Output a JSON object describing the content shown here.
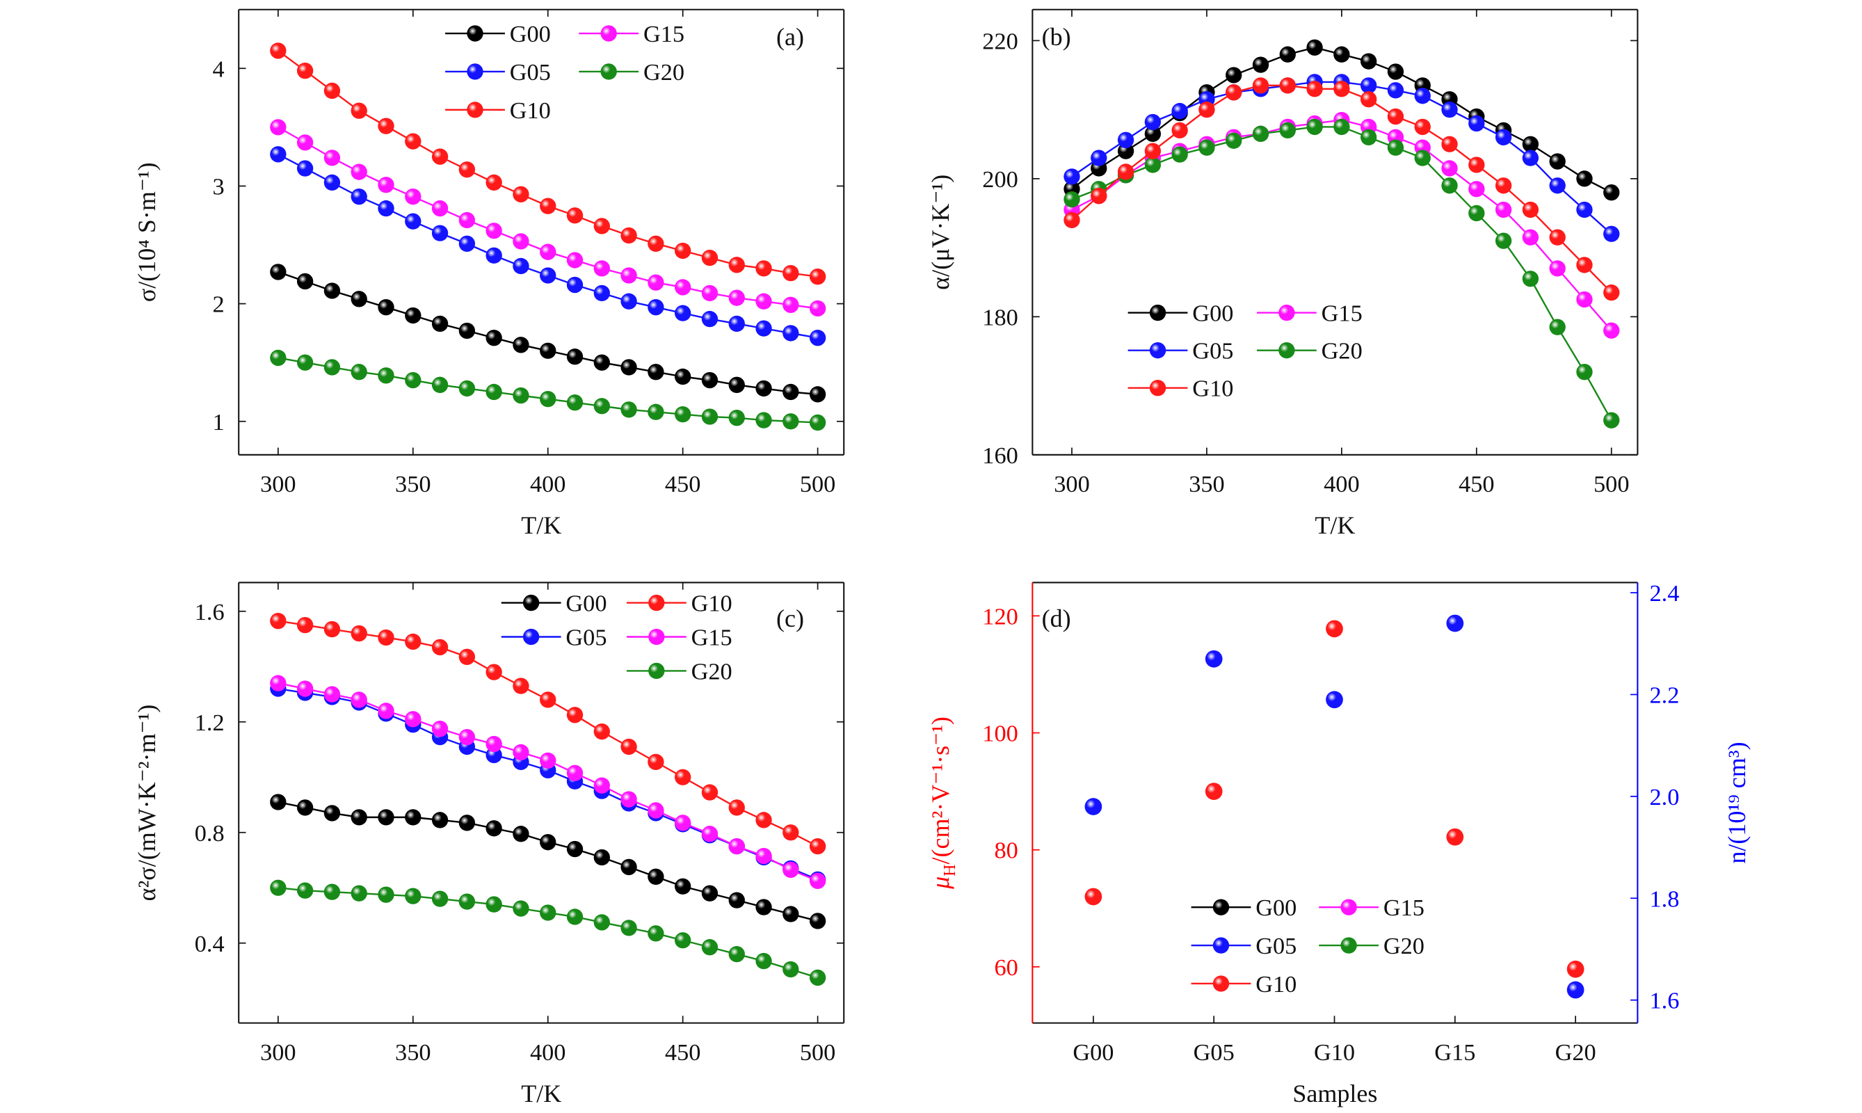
{
  "colors": {
    "G00": "#000000",
    "G05": "#1414ff",
    "G10": "#ff1a1a",
    "G15": "#ff14ff",
    "G20": "#178a17",
    "left_axis_d": "#ff0000",
    "right_axis_d": "#0000ff"
  },
  "chart_data": [
    {
      "type": "line",
      "panel_label": "(a)",
      "xlabel": "T/K",
      "ylabel": "σ/(10⁴ S·m⁻¹)",
      "xlim": [
        285.4,
        509.7
      ],
      "ylim": [
        0.716,
        4.5
      ],
      "xticks": [
        300,
        350,
        400,
        450,
        500
      ],
      "yticks": [
        1,
        2,
        3,
        4
      ],
      "x": [
        300,
        310,
        320,
        330,
        340,
        350,
        360,
        370,
        380,
        390,
        400,
        410,
        420,
        430,
        440,
        450,
        460,
        470,
        480,
        490,
        500
      ],
      "legend_layout": [
        [
          "G00",
          "G15"
        ],
        [
          "G05",
          "G20"
        ],
        [
          "G10"
        ]
      ],
      "series": [
        {
          "name": "G00",
          "values": [
            2.27,
            2.19,
            2.11,
            2.04,
            1.97,
            1.9,
            1.83,
            1.77,
            1.71,
            1.65,
            1.6,
            1.55,
            1.5,
            1.46,
            1.42,
            1.38,
            1.35,
            1.31,
            1.28,
            1.25,
            1.23
          ]
        },
        {
          "name": "G05",
          "values": [
            3.27,
            3.15,
            3.03,
            2.91,
            2.81,
            2.7,
            2.6,
            2.51,
            2.41,
            2.32,
            2.24,
            2.16,
            2.09,
            2.02,
            1.97,
            1.92,
            1.87,
            1.83,
            1.79,
            1.75,
            1.71
          ]
        },
        {
          "name": "G10",
          "values": [
            4.15,
            3.98,
            3.81,
            3.64,
            3.51,
            3.38,
            3.25,
            3.14,
            3.03,
            2.93,
            2.83,
            2.75,
            2.66,
            2.58,
            2.51,
            2.45,
            2.39,
            2.33,
            2.3,
            2.26,
            2.23
          ]
        },
        {
          "name": "G15",
          "values": [
            3.5,
            3.37,
            3.24,
            3.12,
            3.01,
            2.91,
            2.81,
            2.71,
            2.62,
            2.53,
            2.44,
            2.37,
            2.3,
            2.24,
            2.18,
            2.14,
            2.09,
            2.05,
            2.02,
            1.99,
            1.96
          ]
        },
        {
          "name": "G20",
          "values": [
            1.54,
            1.5,
            1.46,
            1.42,
            1.39,
            1.35,
            1.31,
            1.28,
            1.25,
            1.22,
            1.19,
            1.16,
            1.13,
            1.1,
            1.08,
            1.06,
            1.04,
            1.03,
            1.01,
            1.0,
            0.99
          ]
        }
      ]
    },
    {
      "type": "line",
      "panel_label": "(b)",
      "xlabel": "T/K",
      "ylabel": "α/(μV·K⁻¹)",
      "xlim": [
        285.4,
        509.7
      ],
      "ylim": [
        160,
        224.5
      ],
      "xticks": [
        300,
        350,
        400,
        450,
        500
      ],
      "yticks": [
        160,
        180,
        200,
        220
      ],
      "x": [
        300,
        310,
        320,
        330,
        340,
        350,
        360,
        370,
        380,
        390,
        400,
        410,
        420,
        430,
        440,
        450,
        460,
        470,
        480,
        490,
        500
      ],
      "legend_layout": [
        [
          "G00",
          "G15"
        ],
        [
          "G05",
          "G20"
        ],
        [
          "G10"
        ]
      ],
      "series": [
        {
          "name": "G00",
          "values": [
            198.5,
            201.5,
            204,
            206.5,
            209.5,
            212.5,
            215,
            216.5,
            218,
            219,
            218,
            217,
            215.5,
            213.5,
            211.5,
            209,
            207,
            205,
            202.5,
            200,
            198
          ]
        },
        {
          "name": "G05",
          "values": [
            200.3,
            203,
            205.6,
            208.2,
            209.8,
            211.5,
            212.5,
            213,
            213.5,
            214,
            214,
            213.5,
            212.8,
            212,
            210,
            208,
            206,
            203,
            199,
            195.5,
            192
          ]
        },
        {
          "name": "G10",
          "values": [
            194,
            197.5,
            201,
            204,
            207,
            210,
            212.5,
            213.5,
            213.5,
            213,
            213,
            211.5,
            209,
            207.5,
            205,
            202,
            199,
            195.5,
            191.5,
            187.5,
            183.5
          ]
        },
        {
          "name": "G15",
          "values": [
            195.5,
            197.5,
            200.5,
            203,
            204,
            205,
            206,
            206.5,
            207.5,
            208,
            208.5,
            207.5,
            206,
            204.5,
            201.5,
            198.5,
            195.5,
            191.5,
            187,
            182.5,
            178
          ]
        },
        {
          "name": "G20",
          "values": [
            197,
            198.5,
            200.5,
            202,
            203.5,
            204.5,
            205.5,
            206.5,
            207,
            207.5,
            207.5,
            206,
            204.5,
            203,
            199,
            195,
            191,
            185.5,
            178.5,
            172,
            165
          ]
        }
      ]
    },
    {
      "type": "line",
      "panel_label": "(c)",
      "xlabel": "T/K",
      "ylabel": "α²σ/(mW·K⁻²·m⁻¹)",
      "xlim": [
        285.4,
        509.7
      ],
      "ylim": [
        0.111,
        1.704
      ],
      "xticks": [
        300,
        350,
        400,
        450,
        500
      ],
      "yticks": [
        0.4,
        0.8,
        1.2,
        1.6
      ],
      "ytick_labels": [
        "0.4",
        "0.8",
        "1.2",
        "1.6"
      ],
      "x": [
        300,
        310,
        320,
        330,
        340,
        350,
        360,
        370,
        380,
        390,
        400,
        410,
        420,
        430,
        440,
        450,
        460,
        470,
        480,
        490,
        500
      ],
      "legend_layout": [
        [
          "G00",
          "G10"
        ],
        [
          "G05",
          "G15"
        ],
        [
          "",
          "G20"
        ]
      ],
      "series": [
        {
          "name": "G00",
          "values": [
            0.91,
            0.89,
            0.87,
            0.855,
            0.855,
            0.855,
            0.845,
            0.835,
            0.815,
            0.795,
            0.765,
            0.74,
            0.71,
            0.675,
            0.64,
            0.605,
            0.58,
            0.555,
            0.53,
            0.505,
            0.48
          ]
        },
        {
          "name": "G05",
          "values": [
            1.32,
            1.305,
            1.29,
            1.27,
            1.23,
            1.19,
            1.145,
            1.11,
            1.08,
            1.055,
            1.025,
            0.985,
            0.95,
            0.905,
            0.87,
            0.83,
            0.79,
            0.75,
            0.71,
            0.67,
            0.63
          ]
        },
        {
          "name": "G10",
          "values": [
            1.565,
            1.55,
            1.535,
            1.52,
            1.505,
            1.49,
            1.47,
            1.435,
            1.38,
            1.33,
            1.28,
            1.225,
            1.165,
            1.11,
            1.055,
            1.0,
            0.945,
            0.89,
            0.845,
            0.8,
            0.75
          ]
        },
        {
          "name": "G15",
          "values": [
            1.34,
            1.32,
            1.3,
            1.28,
            1.24,
            1.21,
            1.175,
            1.145,
            1.12,
            1.09,
            1.06,
            1.015,
            0.97,
            0.92,
            0.88,
            0.835,
            0.795,
            0.75,
            0.715,
            0.665,
            0.625
          ]
        },
        {
          "name": "G20",
          "values": [
            0.6,
            0.59,
            0.585,
            0.58,
            0.575,
            0.57,
            0.56,
            0.55,
            0.54,
            0.525,
            0.51,
            0.495,
            0.475,
            0.455,
            0.435,
            0.41,
            0.385,
            0.36,
            0.335,
            0.305,
            0.275
          ]
        }
      ]
    },
    {
      "type": "scatter",
      "panel_label": "(d)",
      "xlabel": "Samples",
      "ylabel_symbol": "μ",
      "ylabel_sub": "H",
      "ylabel_rest": "/(cm²·V⁻¹·s⁻¹)",
      "y2label": "n/(10¹⁹ cm³)",
      "categories": [
        "G00",
        "G05",
        "G10",
        "G15",
        "G20"
      ],
      "ylim": [
        50.4,
        125.7
      ],
      "yticks": [
        60,
        80,
        100,
        120
      ],
      "y2lim": [
        1.555,
        2.42
      ],
      "y2ticks": [
        1.6,
        1.8,
        2.0,
        2.2,
        2.4
      ],
      "y2tick_labels": [
        "1.6",
        "1.8",
        "2.0",
        "2.2",
        "2.4"
      ],
      "mobility": [
        72,
        90,
        117.8,
        82.2,
        59.6
      ],
      "carrier_concentration": [
        1.98,
        2.27,
        2.19,
        2.34,
        1.62
      ],
      "legend_layout": [
        [
          "G00",
          "G15"
        ],
        [
          "G05",
          "G20"
        ],
        [
          "G10"
        ]
      ]
    }
  ]
}
